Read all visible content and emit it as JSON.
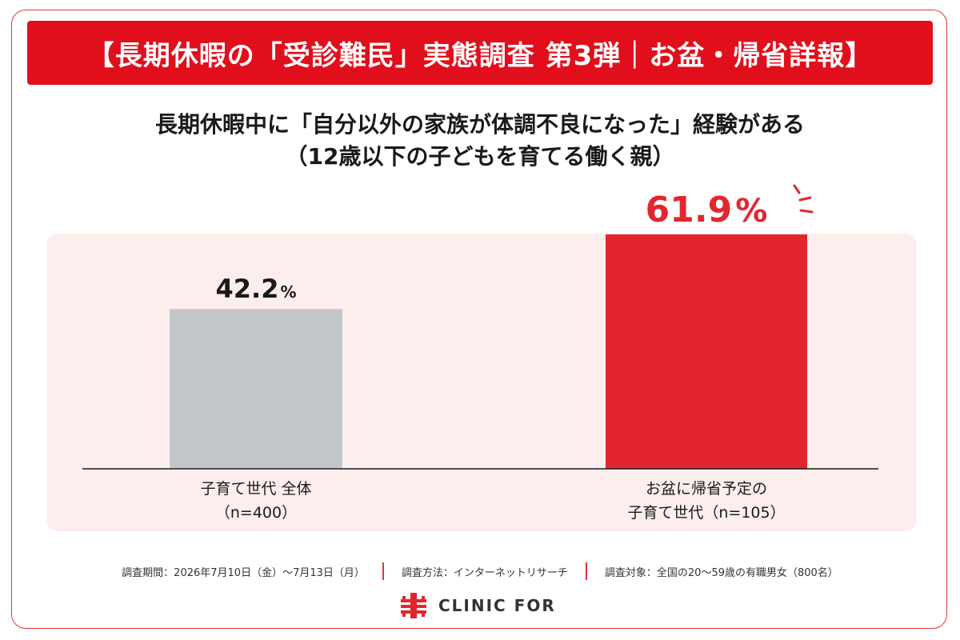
{
  "banner": {
    "text": "【長期休暇の「受診難民」実態調査 第3弾｜お盆・帰省詳報】"
  },
  "chart_data": {
    "type": "bar",
    "title": "長期休暇中に「自分以外の家族が体調不良になった」経験がある",
    "subtitle": "（12歳以下の子どもを育てる働く親）",
    "categories": [
      {
        "line1": "子育て世代 全体",
        "line2": "（n=400）"
      },
      {
        "line1": "お盆に帰省予定の",
        "line2": "子育て世代（n=105）"
      }
    ],
    "values": [
      42.2,
      61.9
    ],
    "value_labels": {
      "num": [
        "42.2",
        "61.9"
      ],
      "unit": "%"
    },
    "colors": [
      "#c3c7cc",
      "#e3262e"
    ],
    "value_label_colors": [
      "#1a1a1a",
      "#e3262e"
    ],
    "ylim": [
      0,
      61.9
    ],
    "grid": false
  },
  "footer": {
    "period": "調査期間：2026年7月10日（金）〜7月13日（月）",
    "method": "調査方法：インターネットリサーチ",
    "target": "調査対象：全国の20〜59歳の有職男女（800名）"
  },
  "logo": {
    "text": "CLINIC FOR",
    "color": "#e3262e"
  }
}
